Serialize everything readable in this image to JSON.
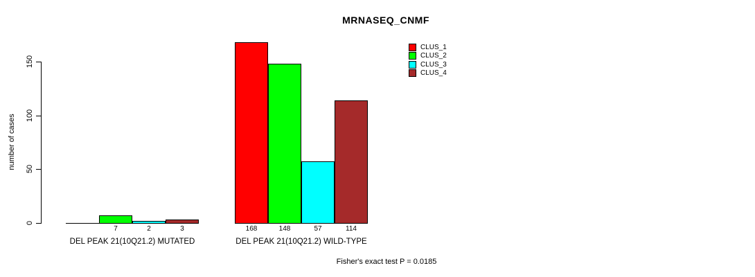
{
  "title": "MRNASEQ_CNMF",
  "footer": "Fisher's exact test P = 0.0185",
  "chart_data": {
    "type": "bar",
    "title": "MRNASEQ_CNMF",
    "ylabel": "number of cases",
    "xlabel": "",
    "ylim": [
      0,
      157
    ],
    "yticks": [
      "0",
      "50",
      "100",
      "150"
    ],
    "ytick_values": [
      0,
      50,
      100,
      150
    ],
    "grid": false,
    "legend_position": "top-right",
    "annotation": "Fisher's exact test P = 0.0185",
    "series": [
      {
        "name": "CLUS_1",
        "color": "#FF0000"
      },
      {
        "name": "CLUS_2",
        "color": "#00FF00"
      },
      {
        "name": "CLUS_3",
        "color": "#00FFFF"
      },
      {
        "name": "CLUS_4",
        "color": "#A52A2A"
      }
    ],
    "groups": [
      {
        "label": "DEL PEAK 21(10Q21.2) MUTATED",
        "values": [
          0,
          7,
          2,
          3
        ],
        "value_labels": [
          "",
          "7",
          "2",
          "3"
        ]
      },
      {
        "label": "DEL PEAK 21(10Q21.2) WILD-TYPE",
        "values": [
          168,
          148,
          57,
          114
        ],
        "value_labels": [
          "168",
          "148",
          "57",
          "114"
        ]
      }
    ]
  }
}
